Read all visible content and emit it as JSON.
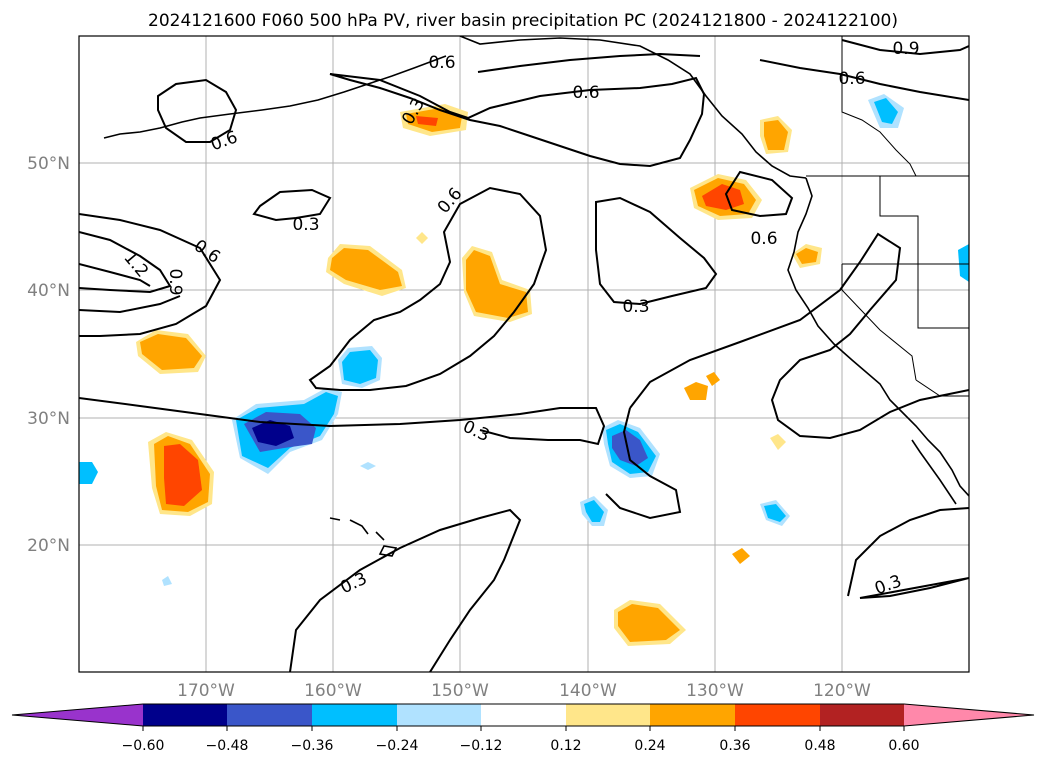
{
  "title": "2024121600 F060 500 hPa PV, river basin precipitation PC (2024121800 - 2024122100)",
  "latitude_labels": [
    "50°N",
    "40°N",
    "30°N",
    "20°N"
  ],
  "longitude_labels": [
    "170°W",
    "160°W",
    "150°W",
    "140°W",
    "130°W",
    "120°W"
  ],
  "map_extent": {
    "lon": [
      -180,
      -110
    ],
    "lat": [
      10,
      60
    ]
  },
  "contour_labels": [
    "0.6",
    "0.6",
    "0.3",
    "0.9",
    "0.6",
    "0.3",
    "0.6",
    "0.6",
    "1.2",
    "0.9",
    "0.6",
    "0.3",
    "0.3",
    "0.3",
    "0.6",
    "0.3"
  ],
  "colorbar": {
    "tick_labels": [
      "−0.60",
      "−0.48",
      "−0.36",
      "−0.24",
      "−0.12",
      "0.12",
      "0.24",
      "0.36",
      "0.48",
      "0.60"
    ],
    "colors": [
      "#9933cc",
      "#00008b",
      "#3a56c9",
      "#00bfff",
      "#b0e2ff",
      "#ffffff",
      "#ffe68a",
      "#ffa500",
      "#ff4500",
      "#b22222",
      "#ff88aa"
    ]
  }
}
